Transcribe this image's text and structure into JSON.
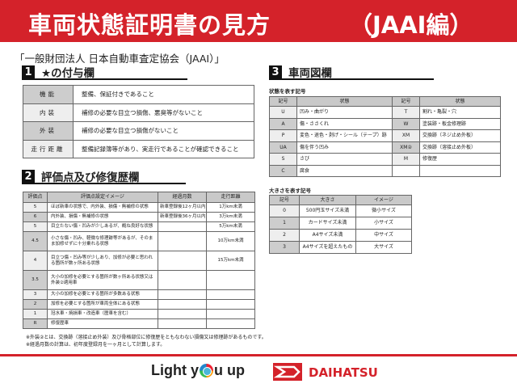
{
  "header": {
    "title": "車両状態証明書の見方",
    "subtitle": "（JAAI編）",
    "color": "#d4222a"
  },
  "organization": "「一般財団法人 日本自動車査定協会（JAAI）」",
  "section1": {
    "number": "1",
    "title": "★の付与欄",
    "rows": [
      [
        "機能",
        "整備、保証付きであること"
      ],
      [
        "内装",
        "補修の必要な目立つ損傷、悪臭等がないこと"
      ],
      [
        "外装",
        "補修の必要な目立つ損傷がないこと"
      ],
      [
        "走行距離",
        "整備記録簿等があり、実走行であることが確認できること"
      ]
    ]
  },
  "section2": {
    "number": "2",
    "title": "評価点及び修復歴欄",
    "headers": [
      "評価点",
      "評価点設定イメージ",
      "経過月数",
      "走行距離"
    ],
    "rows": [
      [
        "5",
        "ほぼ新車の状態で、内外装、損傷・無補修の状態",
        "新車登録後12ヶ月以内",
        "1万km未満"
      ],
      [
        "6",
        "内外装、損傷・無補修の状態",
        "新車登録後36ヶ月以内",
        "3万km未満"
      ],
      [
        "5",
        "目立たない傷・凹みが少しあるが、概ね良好な状態",
        "",
        "5万km未満"
      ],
      [
        "4.5",
        "小さな傷・凹み、軽微な修理跡等があるが、そのまま加修せずに十分乗れる状態",
        "",
        "10万km未満"
      ],
      [
        "4",
        "目立つ傷・凹み等が少しあり、加修が必要と思われる箇所が数ヶ所ある状態",
        "",
        "15万km未満"
      ],
      [
        "3.5",
        "大小の加修を必要とする箇所が数ヶ所ある状態又は外装②適用車",
        "",
        ""
      ],
      [
        "3",
        "大小の加修を必要とする箇所が多数ある状態",
        "",
        ""
      ],
      [
        "2",
        "加修を必要とする箇所が車両全体にある状態",
        "",
        ""
      ],
      [
        "1",
        "冠水車・焼損車・改造車（歴車を含む）",
        "",
        ""
      ],
      [
        "R",
        "修復歴車",
        "",
        ""
      ]
    ],
    "notes": [
      "※外装②とは、交換跡（溶接止め外装）及び骨格部位に修復歴をともなわない損傷又は修理跡があるものです。",
      "※経過月数の計算は、初年度登録月を一ヶ月として計算します。"
    ]
  },
  "section3": {
    "number": "3",
    "title": "車両図欄",
    "condition_caption": "状態を表す記号",
    "condition_headers": [
      "記号",
      "状態",
      "記号",
      "状態"
    ],
    "condition_rows": [
      [
        "U",
        "凹み・曲がり",
        "T",
        "割れ・亀裂・穴"
      ],
      [
        "A",
        "傷・ささくれ",
        "W",
        "塗装跡・板金修理跡"
      ],
      [
        "P",
        "変色・退色・剥げ・シール（テープ）跡",
        "XM",
        "交換跡（ネジ止め外板）"
      ],
      [
        "UA",
        "傷を伴う凹み",
        "XM②",
        "交換跡（溶接止め外板）"
      ],
      [
        "S",
        "さび",
        "M",
        "修復歴"
      ],
      [
        "C",
        "腐食",
        "",
        ""
      ]
    ],
    "size_caption": "大きさを表す記号",
    "size_headers": [
      "記号",
      "大きさ",
      "イメージ"
    ],
    "size_rows": [
      [
        "0",
        "500円玉サイズ未満",
        "微小サイズ"
      ],
      [
        "1",
        "カードサイズ未満",
        "小サイズ"
      ],
      [
        "2",
        "A4サイズ未満",
        "中サイズ"
      ],
      [
        "3",
        "A4サイズを超えたもの",
        "大サイズ"
      ]
    ]
  },
  "footer": {
    "slogan_pre": "Light y",
    "slogan_post": "u up",
    "brand": "DAIHATSU"
  }
}
